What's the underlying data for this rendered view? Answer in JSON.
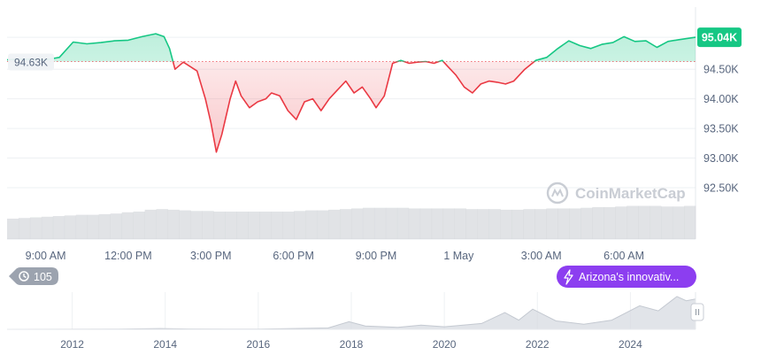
{
  "chart_data": {
    "type": "area",
    "xlabel": "",
    "ylabel": "",
    "baseline": 94.63,
    "baseline_label": "94.63K",
    "current_label": "95.04K",
    "ylim": [
      92.2,
      95.55
    ],
    "y_ticks": [
      {
        "value": 95.04,
        "label": "95.04K"
      },
      {
        "value": 94.5,
        "label": "94.50K"
      },
      {
        "value": 94.0,
        "label": "94.00K"
      },
      {
        "value": 93.5,
        "label": "93.50K"
      },
      {
        "value": 93.0,
        "label": "93.00K"
      },
      {
        "value": 92.5,
        "label": "92.50K"
      }
    ],
    "x_range_hours": [
      7.6,
      32.6
    ],
    "x_ticks": [
      {
        "hour": 9,
        "label": "9:00 AM"
      },
      {
        "hour": 12,
        "label": "12:00 PM"
      },
      {
        "hour": 15,
        "label": "3:00 PM"
      },
      {
        "hour": 18,
        "label": "6:00 PM"
      },
      {
        "hour": 21,
        "label": "9:00 PM"
      },
      {
        "hour": 24,
        "label": "1 May"
      },
      {
        "hour": 27,
        "label": "3:00 AM"
      },
      {
        "hour": 30,
        "label": "6:00 AM"
      }
    ],
    "series": [
      {
        "points": [
          [
            7.6,
            94.66
          ],
          [
            8.0,
            94.67
          ],
          [
            8.5,
            94.67
          ],
          [
            9.0,
            94.66
          ],
          [
            9.5,
            94.7
          ],
          [
            10.0,
            94.96
          ],
          [
            10.5,
            94.93
          ],
          [
            11.0,
            94.95
          ],
          [
            11.5,
            94.98
          ],
          [
            12.0,
            94.99
          ],
          [
            12.5,
            95.05
          ],
          [
            13.0,
            95.1
          ],
          [
            13.3,
            95.05
          ],
          [
            13.5,
            94.85
          ],
          [
            13.7,
            94.5
          ],
          [
            14.0,
            94.62
          ],
          [
            14.5,
            94.47
          ],
          [
            14.8,
            94.0
          ],
          [
            15.0,
            93.6
          ],
          [
            15.2,
            93.1
          ],
          [
            15.4,
            93.4
          ],
          [
            15.7,
            94.0
          ],
          [
            15.9,
            94.3
          ],
          [
            16.1,
            94.05
          ],
          [
            16.4,
            93.85
          ],
          [
            16.7,
            93.95
          ],
          [
            17.0,
            94.0
          ],
          [
            17.2,
            94.1
          ],
          [
            17.5,
            94.05
          ],
          [
            17.8,
            93.8
          ],
          [
            18.1,
            93.65
          ],
          [
            18.4,
            93.95
          ],
          [
            18.7,
            94.0
          ],
          [
            19.0,
            93.8
          ],
          [
            19.3,
            94.0
          ],
          [
            19.6,
            94.15
          ],
          [
            19.9,
            94.3
          ],
          [
            20.2,
            94.1
          ],
          [
            20.5,
            94.2
          ],
          [
            20.8,
            94.0
          ],
          [
            21.0,
            93.85
          ],
          [
            21.3,
            94.05
          ],
          [
            21.6,
            94.6
          ],
          [
            21.9,
            94.65
          ],
          [
            22.2,
            94.6
          ],
          [
            22.5,
            94.62
          ],
          [
            22.8,
            94.63
          ],
          [
            23.1,
            94.6
          ],
          [
            23.4,
            94.65
          ],
          [
            23.6,
            94.55
          ],
          [
            23.9,
            94.4
          ],
          [
            24.2,
            94.2
          ],
          [
            24.5,
            94.1
          ],
          [
            24.8,
            94.25
          ],
          [
            25.1,
            94.3
          ],
          [
            25.4,
            94.28
          ],
          [
            25.7,
            94.25
          ],
          [
            26.0,
            94.3
          ],
          [
            26.4,
            94.5
          ],
          [
            26.8,
            94.65
          ],
          [
            27.2,
            94.7
          ],
          [
            27.6,
            94.85
          ],
          [
            28.0,
            94.98
          ],
          [
            28.4,
            94.9
          ],
          [
            28.8,
            94.85
          ],
          [
            29.2,
            94.92
          ],
          [
            29.6,
            94.95
          ],
          [
            30.0,
            95.05
          ],
          [
            30.4,
            94.97
          ],
          [
            30.8,
            94.98
          ],
          [
            31.2,
            94.87
          ],
          [
            31.6,
            94.97
          ],
          [
            32.0,
            95.0
          ],
          [
            32.6,
            95.04
          ]
        ]
      }
    ],
    "volume_rel": [
      0.32,
      0.33,
      0.34,
      0.35,
      0.36,
      0.37,
      0.38,
      0.38,
      0.39,
      0.4,
      0.42,
      0.43,
      0.46,
      0.47,
      0.46,
      0.45,
      0.44,
      0.44,
      0.43,
      0.43,
      0.43,
      0.43,
      0.43,
      0.43,
      0.43,
      0.44,
      0.45,
      0.45,
      0.46,
      0.47,
      0.48,
      0.49,
      0.49,
      0.49,
      0.49,
      0.48,
      0.48,
      0.48,
      0.48,
      0.48,
      0.47,
      0.47,
      0.47,
      0.46,
      0.46,
      0.47,
      0.47,
      0.48,
      0.48,
      0.48,
      0.49,
      0.5,
      0.5,
      0.51,
      0.52,
      0.52,
      0.52,
      0.51,
      0.51,
      0.52
    ],
    "navigator": {
      "year_ticks": [
        "2012",
        "2014",
        "2016",
        "2018",
        "2020",
        "2022",
        "2024"
      ],
      "year_range": [
        2010.6,
        2025.4
      ],
      "tick_years": [
        2012,
        2014,
        2016,
        2018,
        2020,
        2022,
        2024
      ],
      "history": [
        [
          2010.6,
          0.0
        ],
        [
          2013.0,
          0.01
        ],
        [
          2013.9,
          0.05
        ],
        [
          2014.5,
          0.02
        ],
        [
          2016.0,
          0.01
        ],
        [
          2017.5,
          0.08
        ],
        [
          2017.95,
          0.45
        ],
        [
          2018.3,
          0.2
        ],
        [
          2019.0,
          0.12
        ],
        [
          2019.5,
          0.25
        ],
        [
          2020.0,
          0.15
        ],
        [
          2020.8,
          0.35
        ],
        [
          2021.3,
          1.0
        ],
        [
          2021.6,
          0.55
        ],
        [
          2021.9,
          1.2
        ],
        [
          2022.4,
          0.5
        ],
        [
          2023.0,
          0.3
        ],
        [
          2023.6,
          0.55
        ],
        [
          2024.2,
          1.4
        ],
        [
          2024.6,
          1.1
        ],
        [
          2025.0,
          1.95
        ],
        [
          2025.2,
          1.7
        ],
        [
          2025.4,
          1.8
        ]
      ]
    },
    "watermark": "CoinMarketCap",
    "colors": {
      "up": "#16c784",
      "down": "#ea3943",
      "baseline": "#ea3943",
      "volume": "#c8ccd2",
      "current_badge": "#16c784",
      "baseline_badge": "#eff2f5",
      "history": "#d7dbe1",
      "news_badge": "#8c3ef0",
      "events_badge": "#9ca3af"
    }
  },
  "ui": {
    "events_badge": {
      "icon": "history-icon",
      "count": "105"
    },
    "news_badge": {
      "icon": "lightning-icon",
      "label": "Arizona's innovativ..."
    },
    "navigator_handle": {
      "icon": "drag-handle-icon"
    }
  }
}
